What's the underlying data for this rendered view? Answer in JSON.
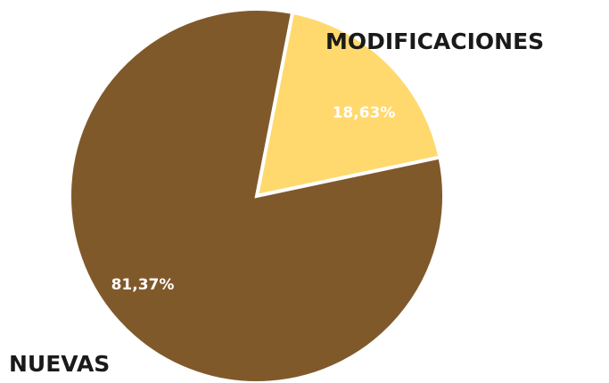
{
  "chart_data": {
    "type": "pie",
    "categories": [
      "MODIFICACIONES",
      "NUEVAS"
    ],
    "values": [
      18.63,
      81.37
    ],
    "value_labels": [
      "18,63%",
      "81,37%"
    ],
    "colors": [
      "#ffd96e",
      "#80592b"
    ]
  }
}
